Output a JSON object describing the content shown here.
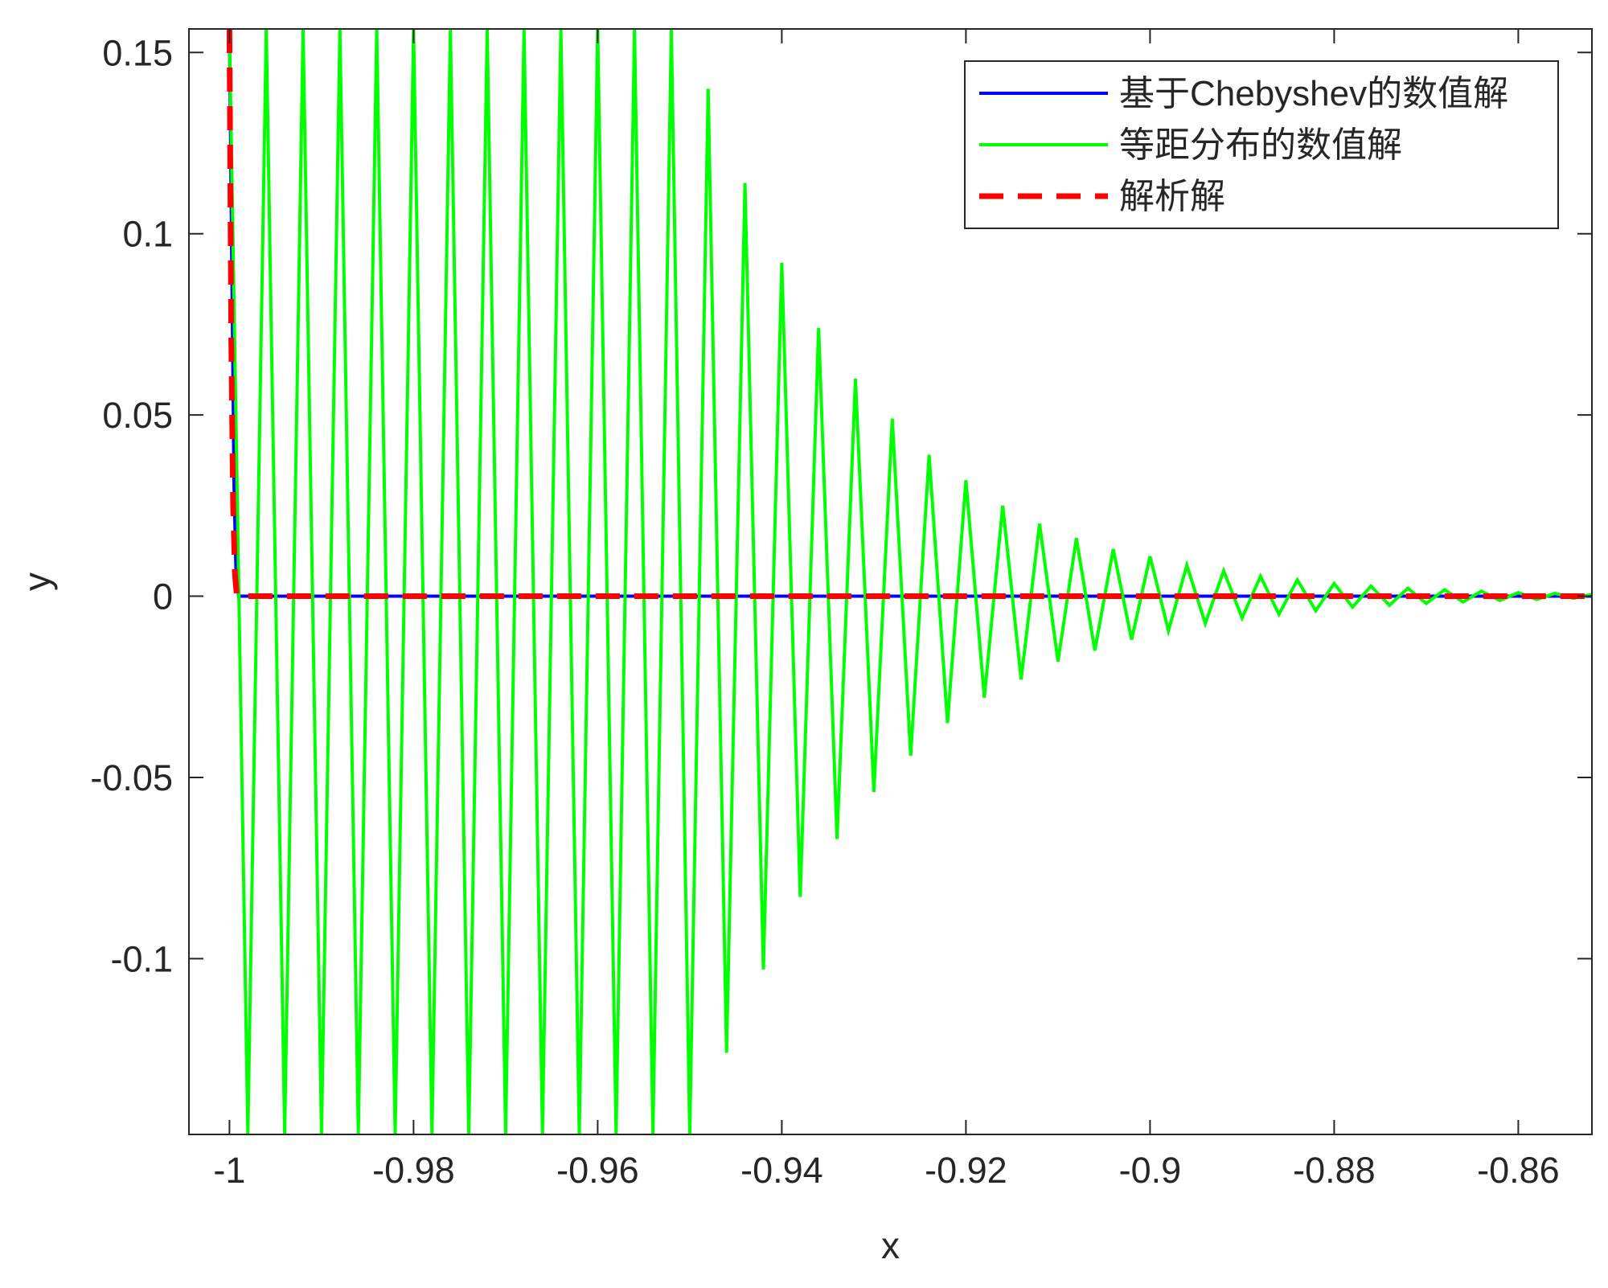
{
  "chart_data": {
    "type": "line",
    "title": "",
    "xlabel": "x",
    "ylabel": "y",
    "xlim": [
      -1.0044,
      -0.852
    ],
    "ylim": [
      -0.1485,
      0.1565
    ],
    "x_ticks": [
      -1,
      -0.98,
      -0.96,
      -0.94,
      -0.92,
      -0.9,
      -0.88,
      -0.86
    ],
    "x_tick_labels": [
      "-1",
      "-0.98",
      "-0.96",
      "-0.94",
      "-0.92",
      "-0.9",
      "-0.88",
      "-0.86"
    ],
    "y_ticks": [
      0.15,
      0.1,
      0.05,
      0,
      -0.05,
      -0.1
    ],
    "y_tick_labels": [
      "0.15",
      "0.1",
      "0.05",
      "0",
      "-0.05",
      "-0.1"
    ],
    "grid": false,
    "box": true,
    "legend_position": "top-right",
    "series": [
      {
        "name": "基于Chebyshev的数值解",
        "color": "#0000ff",
        "style": "solid",
        "x": [
          -1.0,
          -0.9997,
          -0.9995,
          -0.9993,
          -0.999,
          -0.98,
          -0.95,
          -0.9,
          -0.852
        ],
        "y": [
          0.1565,
          0.08,
          0.03,
          0.008,
          0.0,
          0.0,
          0.0,
          0.0,
          0.0
        ]
      },
      {
        "name": "等距分布的数值解",
        "color": "#00ff00",
        "style": "solid",
        "x": [
          -1.0,
          -0.998,
          -0.996,
          -0.994,
          -0.992,
          -0.99,
          -0.988,
          -0.986,
          -0.984,
          -0.982,
          -0.98,
          -0.978,
          -0.976,
          -0.974,
          -0.972,
          -0.97,
          -0.968,
          -0.966,
          -0.964,
          -0.962,
          -0.96,
          -0.958,
          -0.956,
          -0.954,
          -0.952,
          -0.95,
          -0.948,
          -0.946,
          -0.944,
          -0.942,
          -0.94,
          -0.938,
          -0.936,
          -0.934,
          -0.932,
          -0.93,
          -0.928,
          -0.926,
          -0.924,
          -0.922,
          -0.92,
          -0.918,
          -0.916,
          -0.914,
          -0.912,
          -0.91,
          -0.908,
          -0.906,
          -0.904,
          -0.902,
          -0.9,
          -0.898,
          -0.896,
          -0.894,
          -0.892,
          -0.89,
          -0.888,
          -0.886,
          -0.884,
          -0.882,
          -0.88,
          -0.878,
          -0.876,
          -0.874,
          -0.872,
          -0.87,
          -0.868,
          -0.866,
          -0.864,
          -0.862,
          -0.86,
          -0.858,
          -0.856,
          -0.854,
          -0.852
        ],
        "y": [
          0.1565,
          -0.1485,
          0.1565,
          -0.1485,
          0.1565,
          -0.1485,
          0.1565,
          -0.1485,
          0.1565,
          -0.1485,
          0.1565,
          -0.1485,
          0.1565,
          -0.1485,
          0.1565,
          -0.1485,
          0.1565,
          -0.1485,
          0.1565,
          -0.1485,
          0.1565,
          -0.1485,
          0.1565,
          -0.1485,
          0.1565,
          -0.1485,
          0.14,
          -0.126,
          0.114,
          -0.103,
          0.092,
          -0.083,
          0.074,
          -0.067,
          0.06,
          -0.054,
          0.049,
          -0.044,
          0.039,
          -0.035,
          0.032,
          -0.028,
          0.025,
          -0.023,
          0.02,
          -0.018,
          0.016,
          -0.015,
          0.013,
          -0.012,
          0.011,
          -0.0095,
          0.0085,
          -0.0075,
          0.007,
          -0.006,
          0.0055,
          -0.005,
          0.0045,
          -0.004,
          0.0035,
          -0.003,
          0.0028,
          -0.0025,
          0.0022,
          -0.002,
          0.0018,
          -0.0016,
          0.0014,
          -0.0012,
          0.001,
          -0.0009,
          0.0008,
          -0.0006,
          0.0005
        ]
      },
      {
        "name": "解析解",
        "color": "#ff0000",
        "style": "dashed",
        "x": [
          -1.0,
          -0.9998,
          -0.9996,
          -0.9994,
          -0.9992,
          -0.98,
          -0.95,
          -0.9,
          -0.852
        ],
        "y": [
          0.1565,
          0.07,
          0.025,
          0.006,
          0.0,
          0.0,
          0.0,
          0.0,
          0.0
        ]
      }
    ]
  }
}
